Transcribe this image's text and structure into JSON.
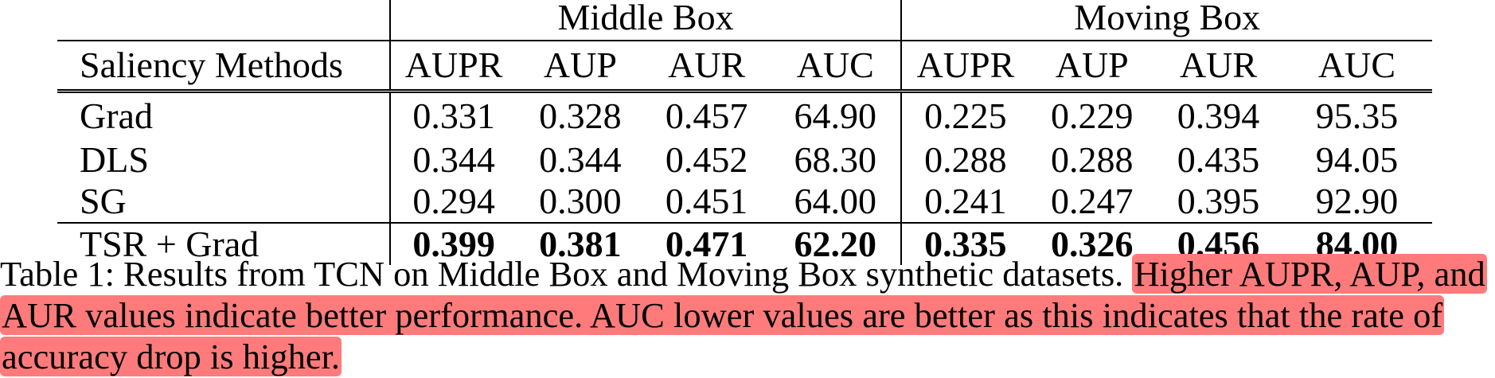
{
  "table": {
    "groups": [
      "Middle Box",
      "Moving Box"
    ],
    "row_header_label": "Saliency Methods",
    "metrics": [
      "AUPR",
      "AUP",
      "AUR",
      "AUC",
      "AUPR",
      "AUP",
      "AUR",
      "AUC"
    ],
    "rows": [
      {
        "method": "Grad",
        "values": [
          "0.331",
          "0.328",
          "0.457",
          "64.90",
          "0.225",
          "0.229",
          "0.394",
          "95.35"
        ],
        "bold": false
      },
      {
        "method": "DLS",
        "values": [
          "0.344",
          "0.344",
          "0.452",
          "68.30",
          "0.288",
          "0.288",
          "0.435",
          "94.05"
        ],
        "bold": false
      },
      {
        "method": "SG",
        "values": [
          "0.294",
          "0.300",
          "0.451",
          "64.00",
          "0.241",
          "0.247",
          "0.395",
          "92.90"
        ],
        "bold": false
      },
      {
        "method": "TSR + Grad",
        "values": [
          "0.399",
          "0.381",
          "0.471",
          "62.20",
          "0.335",
          "0.326",
          "0.456",
          "84.00"
        ],
        "bold": true
      }
    ]
  },
  "caption": {
    "plain": "Table 1: Results from TCN on Middle Box and Moving Box synthetic datasets. ",
    "highlighted": "Higher AUPR, AUP, and AUR values indicate better performance. AUC lower values are better as this indicates that the rate of accuracy drop is higher.",
    "highlight_color": "#ff7b7b"
  }
}
